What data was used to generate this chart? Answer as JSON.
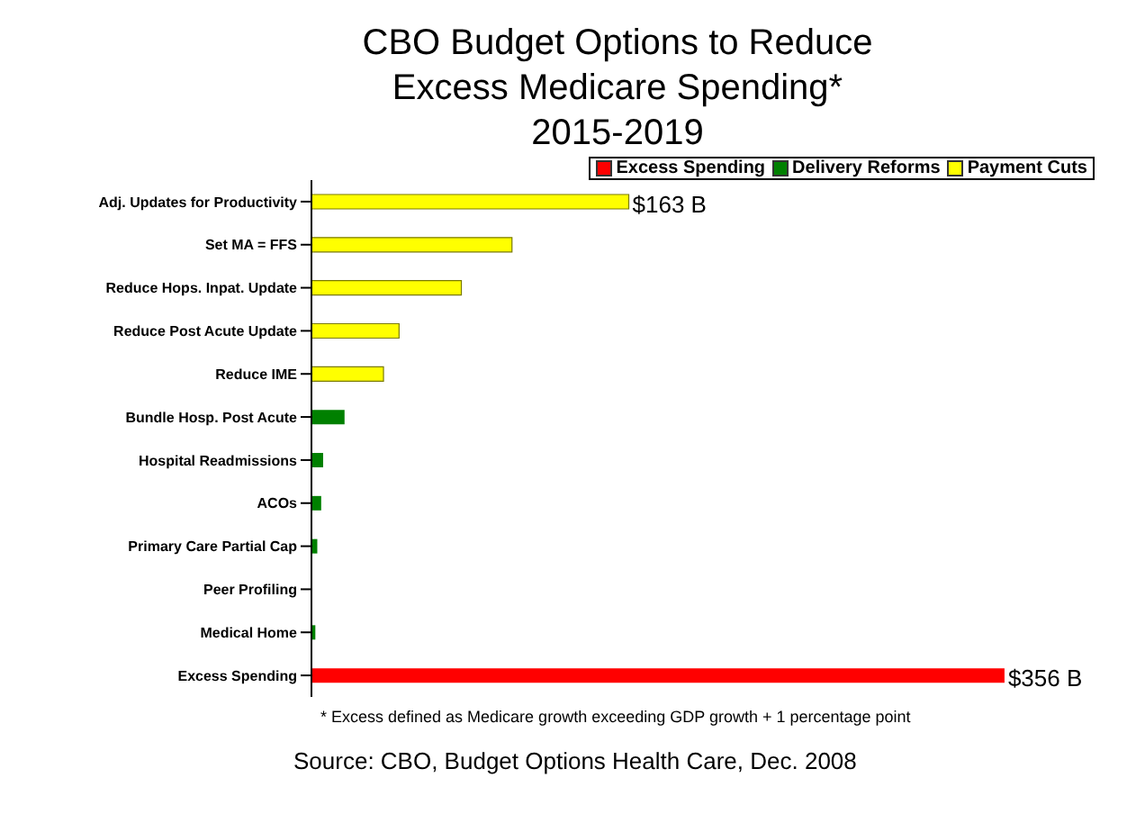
{
  "chart_data": {
    "type": "bar",
    "title": "CBO Budget Options to Reduce Excess Medicare Spending*",
    "subtitle": "2015-2019",
    "orientation": "horizontal",
    "stacked": true,
    "legend": "top right",
    "categories": [
      "Adj. Updates for Productivity",
      "Set MA = FFS",
      "Reduce Hops. Inpat. Update",
      "Reduce Post Acute Update",
      "Reduce IME",
      "Bundle Hosp. Post Acute",
      "Hospital Readmissions",
      "ACOs",
      "Primary Care Partial Cap",
      "Peer Profiling",
      "Medical Home",
      "Excess Spending"
    ],
    "series": [
      {
        "name": "Excess Spending",
        "color": "#ff0000",
        "values": [
          null,
          null,
          null,
          null,
          null,
          null,
          null,
          null,
          null,
          null,
          null,
          356
        ],
        "value_labels": [
          null,
          null,
          null,
          null,
          null,
          null,
          null,
          null,
          null,
          null,
          null,
          "$356 B"
        ]
      },
      {
        "name": "Delivery Reforms",
        "color": "#008000",
        "values": [
          null,
          null,
          null,
          null,
          null,
          17,
          6,
          5,
          3,
          0,
          2,
          null
        ]
      },
      {
        "name": "Payment Cuts",
        "color": "#ffff00",
        "values": [
          163,
          103,
          77,
          45,
          37,
          null,
          null,
          null,
          null,
          null,
          null,
          null
        ],
        "value_labels": [
          "$163 B",
          null,
          null,
          null,
          null,
          null,
          null,
          null,
          null,
          null,
          null,
          null
        ]
      }
    ],
    "annotations": [
      "* Excess defined as Medicare growth exceeding GDP growth + 1 percentage point",
      "Source: CBO, Budget Options Health Care, Dec. 2008"
    ]
  }
}
